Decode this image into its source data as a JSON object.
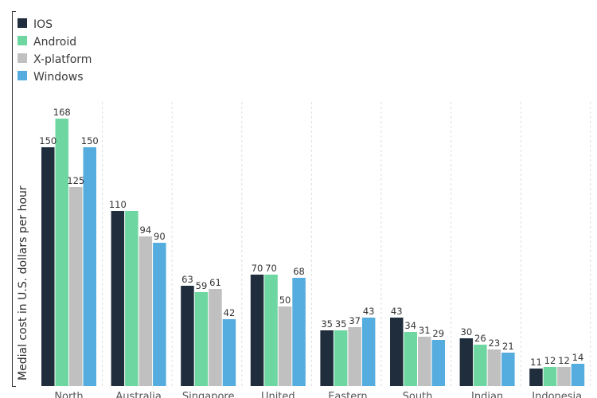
{
  "chart_data": {
    "type": "bar",
    "ylabel": "Medial cost in U.S. dollars per hour",
    "categories": [
      "North",
      "Australia",
      "Singapore",
      "United",
      "Eastern",
      "South",
      "Indian",
      "Indonesia"
    ],
    "series": [
      {
        "name": "IOS",
        "color": "#1f2d3d",
        "values": [
          150,
          110,
          63,
          70,
          35,
          43,
          30,
          11
        ]
      },
      {
        "name": "Android",
        "color": "#6ed6a0",
        "values": [
          168,
          110,
          59,
          70,
          35,
          34,
          26,
          12
        ]
      },
      {
        "name": "X-platform",
        "color": "#c0c0c0",
        "values": [
          125,
          94,
          61,
          50,
          37,
          31,
          23,
          12
        ]
      },
      {
        "name": "Windows",
        "color": "#55acdf",
        "values": [
          150,
          90,
          42,
          68,
          43,
          29,
          21,
          14
        ]
      }
    ],
    "bar_labels": [
      [
        "150",
        "110",
        "63",
        "70",
        "35",
        "43",
        "30",
        "11"
      ],
      [
        "168",
        "",
        "59",
        "70",
        "35",
        "34",
        "26",
        "12"
      ],
      [
        "125",
        "94",
        "61",
        "50",
        "37",
        "31",
        "23",
        "12"
      ],
      [
        "150",
        "90",
        "42",
        "68",
        "43",
        "29",
        "21",
        "14"
      ]
    ],
    "legend_position": "top-left",
    "grid": "vertical-dashed"
  }
}
